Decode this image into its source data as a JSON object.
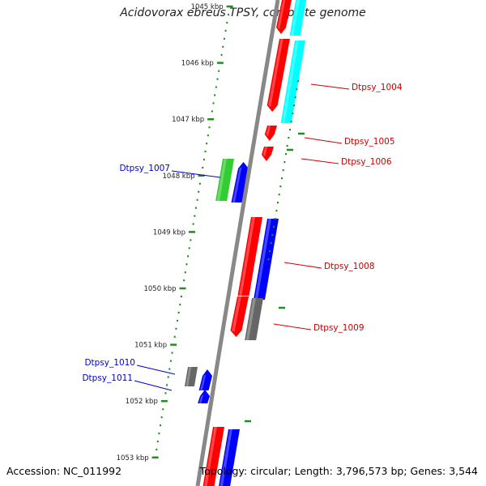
{
  "title": "Acidovorax ebreus TPSY, complete genome",
  "footer": {
    "accession": "Accession: NC_011992",
    "topology": "Topology: circular; Length: 3,796,573 bp; Genes: 3,544"
  },
  "colors": {
    "backbone": "#888888",
    "tick": "#228B22",
    "forward_label": "#0000cc",
    "reverse_label": "#cc0000",
    "red": "#ff0000",
    "cyan": "#00ffff",
    "blue": "#0000ff",
    "green": "#33cc33",
    "gray": "#666666"
  },
  "ticks": [
    {
      "label": "1045 kbp",
      "value": 1045
    },
    {
      "label": "1046 kbp",
      "value": 1046
    },
    {
      "label": "1047 kbp",
      "value": 1047
    },
    {
      "label": "1048 kbp",
      "value": 1048
    },
    {
      "label": "1049 kbp",
      "value": 1049
    },
    {
      "label": "1050 kbp",
      "value": 1050
    },
    {
      "label": "1051 kbp",
      "value": 1051
    },
    {
      "label": "1052 kbp",
      "value": 1052
    },
    {
      "label": "1053 kbp",
      "value": 1053
    }
  ],
  "gene_labels": [
    {
      "text": "Dtpsy_1004",
      "strand": "reverse"
    },
    {
      "text": "Dtpsy_1005",
      "strand": "reverse"
    },
    {
      "text": "Dtpsy_1006",
      "strand": "reverse"
    },
    {
      "text": "Dtpsy_1007",
      "strand": "forward"
    },
    {
      "text": "Dtpsy_1008",
      "strand": "reverse"
    },
    {
      "text": "Dtpsy_1009",
      "strand": "reverse"
    },
    {
      "text": "Dtpsy_1010",
      "strand": "forward"
    },
    {
      "text": "Dtpsy_1011",
      "strand": "forward"
    }
  ]
}
